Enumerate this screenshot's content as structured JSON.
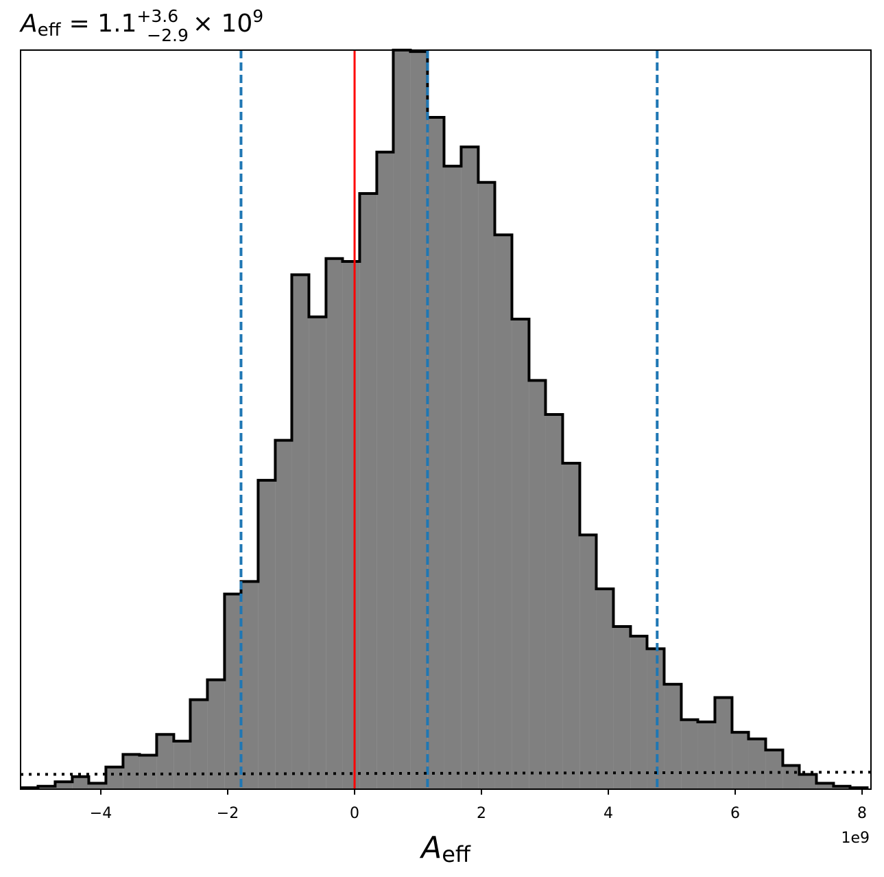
{
  "chart_data": {
    "type": "histogram",
    "title": {
      "symbol": "A",
      "subscript": "eff",
      "equals": "= 1.1",
      "upper": "+3.6",
      "lower": "−2.9",
      "times": "× 10",
      "exponent": "9"
    },
    "x_label": {
      "symbol": "A",
      "subscript": "eff"
    },
    "offset_text": "1e9",
    "bins": [
      -5.25,
      -4.99,
      -4.72,
      -4.45,
      -4.19,
      -3.92,
      -3.65,
      -3.39,
      -3.12,
      -2.85,
      -2.59,
      -2.32,
      -2.05,
      -1.79,
      -1.52,
      -1.25,
      -0.99,
      -0.72,
      -0.45,
      -0.19,
      0.08,
      0.35,
      0.61,
      0.88,
      1.15,
      1.41,
      1.68,
      1.95,
      2.21,
      2.48,
      2.75,
      3.01,
      3.28,
      3.55,
      3.81,
      4.08,
      4.35,
      4.61,
      4.88,
      5.15,
      5.41,
      5.68,
      5.95,
      6.21,
      6.48,
      6.75,
      7.01,
      7.28,
      7.55,
      7.81,
      8.08
    ],
    "values": [
      2,
      4,
      10,
      17,
      8,
      30,
      47,
      46,
      74,
      65,
      121,
      148,
      264,
      281,
      418,
      472,
      696,
      639,
      718,
      714,
      806,
      862,
      1000,
      998,
      909,
      843,
      869,
      821,
      750,
      636,
      553,
      507,
      441,
      344,
      271,
      220,
      207,
      190,
      142,
      94,
      91,
      124,
      77,
      68,
      53,
      32,
      20,
      8,
      4,
      2
    ],
    "color": "#808080",
    "edge_color": "#000000",
    "xlim": [
      -5.265,
      8.14
    ],
    "ylim": [
      0,
      1000
    ],
    "xticks": [
      {
        "value": -4,
        "label": "−4"
      },
      {
        "value": -2,
        "label": "−2"
      },
      0,
      2,
      4,
      6,
      8
    ],
    "vlines": [
      {
        "value": 0,
        "color": "#ff0000",
        "style": "solid"
      },
      {
        "value": -1.79,
        "color": "#1f77b4",
        "style": "dashed"
      },
      {
        "value": 1.15,
        "color": "#1f77b4",
        "style": "dashed"
      },
      {
        "value": 4.77,
        "color": "#1f77b4",
        "style": "dashed"
      }
    ],
    "reference_line": {
      "x": [
        -5.265,
        8.14
      ],
      "values": [
        20,
        23
      ],
      "color": "#000000",
      "style": "dotted"
    }
  }
}
